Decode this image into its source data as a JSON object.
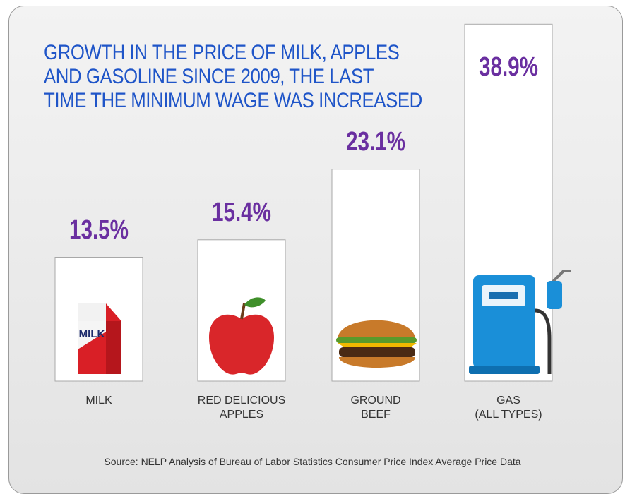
{
  "chart_data": {
    "type": "bar",
    "title": "GROWTH IN THE PRICE OF MILK, APPLES\nAND GASOLINE SINCE 2009, THE LAST\nTIME THE MINIMUM WAGE WAS INCREASED",
    "categories": [
      "MILK",
      "RED DELICIOUS\nAPPLES",
      "GROUND\nBEEF",
      "GAS\n(ALL TYPES)"
    ],
    "values": [
      13.5,
      15.4,
      23.1,
      38.9
    ],
    "value_labels": [
      "13.5%",
      "15.4%",
      "23.1%",
      "38.9%"
    ],
    "color": "#ffffff",
    "ylim": [
      0,
      40
    ],
    "source": "Source: NELP Analysis of Bureau of Labor Statistics Consumer Price Index Average Price Data"
  }
}
